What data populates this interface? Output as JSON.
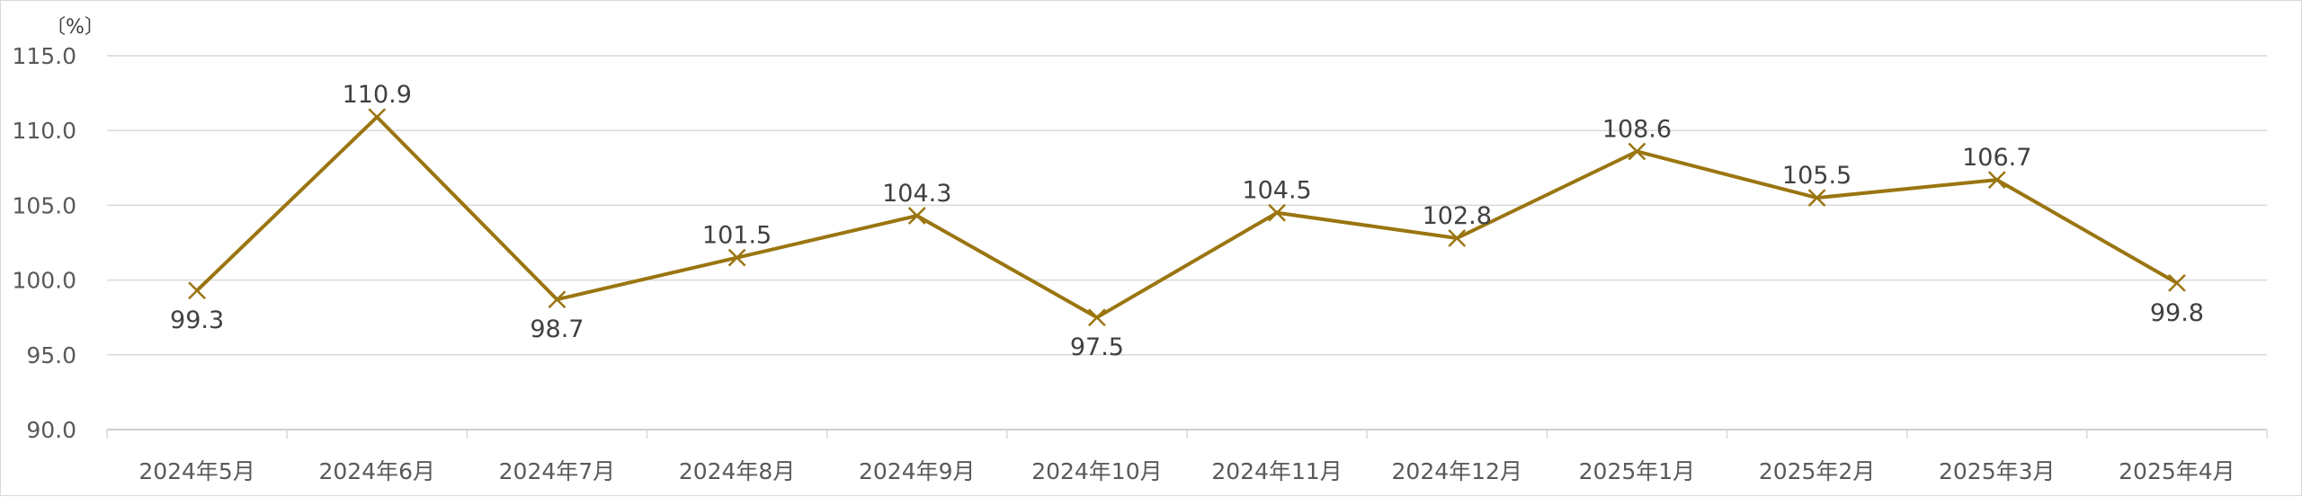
{
  "chart_data": {
    "type": "line",
    "title": "",
    "ylabel": "〔%〕",
    "xlabel": "",
    "ylim": [
      90,
      115
    ],
    "yticks": [
      "115.0",
      "110.0",
      "105.0",
      "100.0",
      "95.0",
      "90.0"
    ],
    "ytick_values": [
      115,
      110,
      105,
      100,
      95,
      90
    ],
    "grid": true,
    "legend": "none",
    "categories": [
      "2024年5月",
      "2024年6月",
      "2024年7月",
      "2024年8月",
      "2024年9月",
      "2024年10月",
      "2024年11月",
      "2024年12月",
      "2025年1月",
      "2025年2月",
      "2025年3月",
      "2025年4月"
    ],
    "series": [
      {
        "values": [
          99.3,
          110.9,
          98.7,
          101.5,
          104.3,
          97.5,
          104.5,
          102.8,
          108.6,
          105.5,
          106.7,
          99.8
        ],
        "labels": [
          "99.3",
          "110.9",
          "98.7",
          "101.5",
          "104.3",
          "97.5",
          "104.5",
          "102.8",
          "108.6",
          "105.5",
          "106.7",
          "99.8"
        ],
        "label_positions": [
          "below",
          "above",
          "below",
          "above",
          "above",
          "below",
          "above",
          "above",
          "above",
          "above",
          "above",
          "below"
        ],
        "color": "#9a7510",
        "marker": "x"
      }
    ]
  }
}
